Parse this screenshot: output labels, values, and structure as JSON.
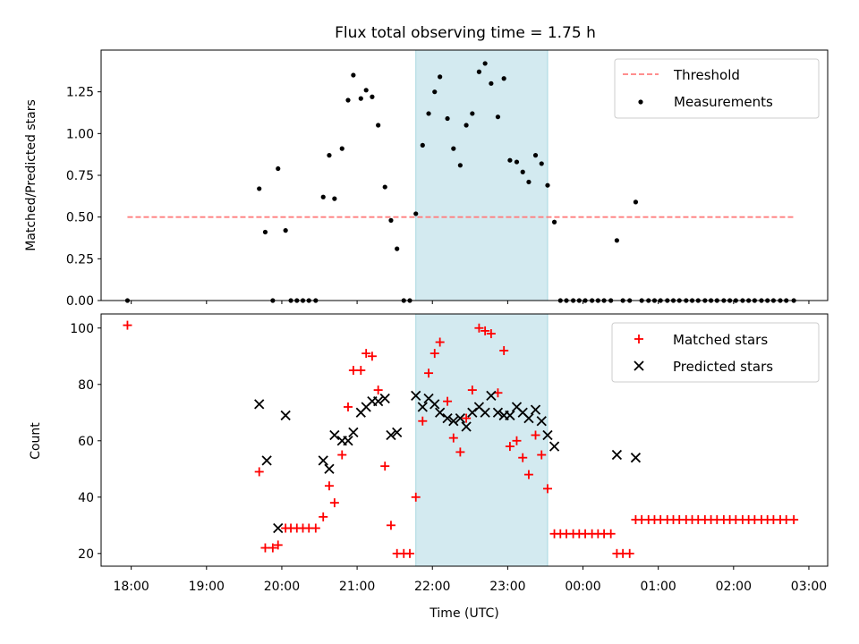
{
  "figure": {
    "title": "Flux total observing time = 1.75 h",
    "colors": {
      "threshold": "#ff7f7f",
      "measurement": "#000000",
      "matched": "#ff0000",
      "predicted": "#000000",
      "span_fill": "#d3eaf0",
      "span_edge": "#a8d8e0"
    }
  },
  "chart_data": [
    {
      "type": "scatter",
      "panel": "top",
      "title": "Flux total observing time = 1.75 h",
      "xlabel": "",
      "ylabel": "Matched/Predicted stars",
      "xlim": [
        17.6,
        27.25
      ],
      "ylim": [
        0,
        1.5
      ],
      "yticks": [
        0.0,
        0.25,
        0.5,
        0.75,
        1.0,
        1.25
      ],
      "ytick_labels": [
        "0.00",
        "0.25",
        "0.50",
        "0.75",
        "1.00",
        "1.25"
      ],
      "highlight_span": [
        21.78,
        23.53
      ],
      "legend_position": "top-right",
      "threshold": {
        "name": "Threshold",
        "value": 0.5,
        "x": [
          17.95,
          26.8
        ]
      },
      "series": [
        {
          "name": "Measurements",
          "points": [
            [
              17.95,
              0.0
            ],
            [
              19.7,
              0.67
            ],
            [
              19.78,
              0.41
            ],
            [
              19.88,
              0.0
            ],
            [
              19.95,
              0.79
            ],
            [
              20.05,
              0.42
            ],
            [
              20.12,
              0.0
            ],
            [
              20.2,
              0.0
            ],
            [
              20.28,
              0.0
            ],
            [
              20.36,
              0.0
            ],
            [
              20.45,
              0.0
            ],
            [
              20.55,
              0.62
            ],
            [
              20.63,
              0.87
            ],
            [
              20.7,
              0.61
            ],
            [
              20.8,
              0.91
            ],
            [
              20.88,
              1.2
            ],
            [
              20.95,
              1.35
            ],
            [
              21.05,
              1.21
            ],
            [
              21.12,
              1.26
            ],
            [
              21.2,
              1.22
            ],
            [
              21.28,
              1.05
            ],
            [
              21.37,
              0.68
            ],
            [
              21.45,
              0.48
            ],
            [
              21.53,
              0.31
            ],
            [
              21.62,
              0.0
            ],
            [
              21.7,
              0.0
            ],
            [
              21.78,
              0.52
            ],
            [
              21.87,
              0.93
            ],
            [
              21.95,
              1.12
            ],
            [
              22.03,
              1.25
            ],
            [
              22.1,
              1.34
            ],
            [
              22.2,
              1.09
            ],
            [
              22.28,
              0.91
            ],
            [
              22.37,
              0.81
            ],
            [
              22.45,
              1.05
            ],
            [
              22.53,
              1.12
            ],
            [
              22.62,
              1.37
            ],
            [
              22.7,
              1.42
            ],
            [
              22.78,
              1.3
            ],
            [
              22.87,
              1.1
            ],
            [
              22.95,
              1.33
            ],
            [
              23.03,
              0.84
            ],
            [
              23.12,
              0.83
            ],
            [
              23.2,
              0.77
            ],
            [
              23.28,
              0.71
            ],
            [
              23.37,
              0.87
            ],
            [
              23.45,
              0.82
            ],
            [
              23.53,
              0.69
            ],
            [
              23.62,
              0.47
            ],
            [
              23.7,
              0.0
            ],
            [
              23.78,
              0.0
            ],
            [
              23.87,
              0.0
            ],
            [
              23.95,
              0.0
            ],
            [
              24.03,
              0.0
            ],
            [
              24.12,
              0.0
            ],
            [
              24.2,
              0.0
            ],
            [
              24.28,
              0.0
            ],
            [
              24.37,
              0.0
            ],
            [
              24.45,
              0.36
            ],
            [
              24.53,
              0.0
            ],
            [
              24.62,
              0.0
            ],
            [
              24.7,
              0.59
            ],
            [
              24.78,
              0.0
            ],
            [
              24.87,
              0.0
            ],
            [
              24.95,
              0.0
            ],
            [
              25.03,
              0.0
            ],
            [
              25.12,
              0.0
            ],
            [
              25.2,
              0.0
            ],
            [
              25.28,
              0.0
            ],
            [
              25.37,
              0.0
            ],
            [
              25.45,
              0.0
            ],
            [
              25.53,
              0.0
            ],
            [
              25.62,
              0.0
            ],
            [
              25.7,
              0.0
            ],
            [
              25.78,
              0.0
            ],
            [
              25.87,
              0.0
            ],
            [
              25.95,
              0.0
            ],
            [
              26.03,
              0.0
            ],
            [
              26.12,
              0.0
            ],
            [
              26.2,
              0.0
            ],
            [
              26.28,
              0.0
            ],
            [
              26.37,
              0.0
            ],
            [
              26.45,
              0.0
            ],
            [
              26.53,
              0.0
            ],
            [
              26.62,
              0.0
            ],
            [
              26.7,
              0.0
            ],
            [
              26.8,
              0.0
            ]
          ]
        }
      ]
    },
    {
      "type": "scatter",
      "panel": "bottom",
      "xlabel": "Time (UTC)",
      "ylabel": "Count",
      "xlim": [
        17.6,
        27.25
      ],
      "ylim": [
        15.5,
        105
      ],
      "yticks": [
        20,
        40,
        60,
        80,
        100
      ],
      "ytick_labels": [
        "20",
        "40",
        "60",
        "80",
        "100"
      ],
      "xticks": [
        18,
        19,
        20,
        21,
        22,
        23,
        24,
        25,
        26,
        27
      ],
      "xtick_labels": [
        "18:00",
        "19:00",
        "20:00",
        "21:00",
        "22:00",
        "23:00",
        "00:00",
        "01:00",
        "02:00",
        "03:00"
      ],
      "highlight_span": [
        21.78,
        23.53
      ],
      "legend_position": "top-right",
      "series": [
        {
          "name": "Matched stars",
          "marker": "plus",
          "points": [
            [
              17.95,
              101
            ],
            [
              19.7,
              49
            ],
            [
              19.78,
              22
            ],
            [
              19.88,
              22
            ],
            [
              19.95,
              23
            ],
            [
              20.05,
              29
            ],
            [
              20.12,
              29
            ],
            [
              20.2,
              29
            ],
            [
              20.28,
              29
            ],
            [
              20.36,
              29
            ],
            [
              20.45,
              29
            ],
            [
              20.55,
              33
            ],
            [
              20.63,
              44
            ],
            [
              20.7,
              38
            ],
            [
              20.8,
              55
            ],
            [
              20.88,
              72
            ],
            [
              20.95,
              85
            ],
            [
              21.05,
              85
            ],
            [
              21.12,
              91
            ],
            [
              21.2,
              90
            ],
            [
              21.28,
              78
            ],
            [
              21.37,
              51
            ],
            [
              21.45,
              30
            ],
            [
              21.53,
              20
            ],
            [
              21.62,
              20
            ],
            [
              21.7,
              20
            ],
            [
              21.78,
              40
            ],
            [
              21.87,
              67
            ],
            [
              21.95,
              84
            ],
            [
              22.03,
              91
            ],
            [
              22.1,
              95
            ],
            [
              22.2,
              74
            ],
            [
              22.28,
              61
            ],
            [
              22.37,
              56
            ],
            [
              22.45,
              68
            ],
            [
              22.53,
              78
            ],
            [
              22.62,
              100
            ],
            [
              22.7,
              99
            ],
            [
              22.78,
              98
            ],
            [
              22.87,
              77
            ],
            [
              22.95,
              92
            ],
            [
              23.03,
              58
            ],
            [
              23.12,
              60
            ],
            [
              23.2,
              54
            ],
            [
              23.28,
              48
            ],
            [
              23.37,
              62
            ],
            [
              23.45,
              55
            ],
            [
              23.53,
              43
            ],
            [
              23.62,
              27
            ],
            [
              23.7,
              27
            ],
            [
              23.78,
              27
            ],
            [
              23.87,
              27
            ],
            [
              23.95,
              27
            ],
            [
              24.03,
              27
            ],
            [
              24.12,
              27
            ],
            [
              24.2,
              27
            ],
            [
              24.28,
              27
            ],
            [
              24.37,
              27
            ],
            [
              24.45,
              20
            ],
            [
              24.53,
              20
            ],
            [
              24.62,
              20
            ],
            [
              24.7,
              32
            ],
            [
              24.78,
              32
            ],
            [
              24.87,
              32
            ],
            [
              24.95,
              32
            ],
            [
              25.03,
              32
            ],
            [
              25.12,
              32
            ],
            [
              25.2,
              32
            ],
            [
              25.28,
              32
            ],
            [
              25.37,
              32
            ],
            [
              25.45,
              32
            ],
            [
              25.53,
              32
            ],
            [
              25.62,
              32
            ],
            [
              25.7,
              32
            ],
            [
              25.78,
              32
            ],
            [
              25.87,
              32
            ],
            [
              25.95,
              32
            ],
            [
              26.03,
              32
            ],
            [
              26.12,
              32
            ],
            [
              26.2,
              32
            ],
            [
              26.28,
              32
            ],
            [
              26.37,
              32
            ],
            [
              26.45,
              32
            ],
            [
              26.53,
              32
            ],
            [
              26.62,
              32
            ],
            [
              26.7,
              32
            ],
            [
              26.8,
              32
            ]
          ]
        },
        {
          "name": "Predicted stars",
          "marker": "x",
          "points": [
            [
              19.7,
              73
            ],
            [
              19.8,
              53
            ],
            [
              19.95,
              29
            ],
            [
              20.05,
              69
            ],
            [
              20.55,
              53
            ],
            [
              20.63,
              50
            ],
            [
              20.7,
              62
            ],
            [
              20.8,
              60
            ],
            [
              20.88,
              60
            ],
            [
              20.95,
              63
            ],
            [
              21.05,
              70
            ],
            [
              21.12,
              72
            ],
            [
              21.2,
              74
            ],
            [
              21.28,
              74
            ],
            [
              21.37,
              75
            ],
            [
              21.45,
              62
            ],
            [
              21.53,
              63
            ],
            [
              21.78,
              76
            ],
            [
              21.87,
              72
            ],
            [
              21.95,
              75
            ],
            [
              22.03,
              73
            ],
            [
              22.1,
              70
            ],
            [
              22.2,
              68
            ],
            [
              22.28,
              67
            ],
            [
              22.37,
              68
            ],
            [
              22.45,
              65
            ],
            [
              22.53,
              70
            ],
            [
              22.62,
              72
            ],
            [
              22.7,
              70
            ],
            [
              22.78,
              76
            ],
            [
              22.87,
              70
            ],
            [
              22.95,
              69
            ],
            [
              23.03,
              69
            ],
            [
              23.12,
              72
            ],
            [
              23.2,
              70
            ],
            [
              23.28,
              68
            ],
            [
              23.37,
              71
            ],
            [
              23.45,
              67
            ],
            [
              23.53,
              62
            ],
            [
              23.62,
              58
            ],
            [
              24.45,
              55
            ],
            [
              24.7,
              54
            ]
          ]
        }
      ]
    }
  ]
}
